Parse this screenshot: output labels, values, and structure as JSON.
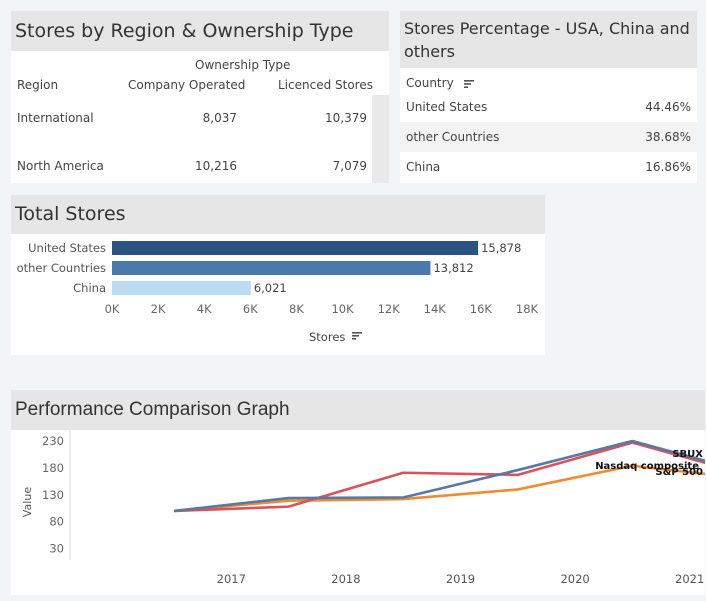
{
  "region_table": {
    "title": "Stores by Region & Ownership Type",
    "group_header": "Ownership Type",
    "col_region": "Region",
    "col_company": "Company Operated",
    "col_licenced": "Licenced Stores",
    "rows": [
      {
        "region": "International",
        "company": "8,037",
        "licenced": "10,379"
      },
      {
        "region": "North America",
        "company": "10,216",
        "licenced": "7,079"
      }
    ]
  },
  "percentage_table": {
    "title": "Stores Percentage - USA, China and others",
    "col_country": "Country",
    "rows": [
      {
        "country": "United States",
        "pct": "44.46%"
      },
      {
        "country": "other Countries",
        "pct": "38.68%"
      },
      {
        "country": "China",
        "pct": "16.86%"
      }
    ]
  },
  "total_stores": {
    "title": "Total Stores",
    "axis_label": "Stores",
    "ticks": [
      "0K",
      "2K",
      "4K",
      "6K",
      "8K",
      "10K",
      "12K",
      "14K",
      "16K",
      "18K"
    ],
    "colors": {
      "United States": "#2c5282",
      "other Countries": "#4a79ac",
      "China": "#bcdcf1"
    }
  },
  "performance": {
    "title": "Performance Comparison Graph",
    "ylabel": "Value",
    "yticks": [
      "230",
      "180",
      "130",
      "80",
      "30"
    ],
    "xticks": [
      "2017",
      "2018",
      "2019",
      "2020",
      "2021"
    ],
    "colors": {
      "SBUX": "#d9545a",
      "Nasdaq composite": "#5878a6",
      "S&P 500": "#f08c2e"
    }
  },
  "chart_data": [
    {
      "type": "bar",
      "orientation": "horizontal",
      "title": "Total Stores",
      "categories": [
        "United States",
        "other Countries",
        "China"
      ],
      "values": [
        15878,
        13812,
        6021
      ],
      "value_labels": [
        "15,878",
        "13,812",
        "6,021"
      ],
      "xlabel": "Stores",
      "xlim": [
        0,
        18000
      ]
    },
    {
      "type": "line",
      "title": "Performance Comparison Graph",
      "ylabel": "Value",
      "ylim": [
        30,
        230
      ],
      "x": [
        2016.5,
        2017.5,
        2018.5,
        2019.5,
        2020.5,
        2021.5
      ],
      "series": [
        {
          "name": "SBUX",
          "values": [
            100,
            108,
            171,
            167,
            227,
            168
          ]
        },
        {
          "name": "Nasdaq composite",
          "values": [
            100,
            124,
            125,
            176,
            230,
            172
          ]
        },
        {
          "name": "S&P 500",
          "values": [
            100,
            119,
            122,
            140,
            184,
            160
          ]
        }
      ]
    }
  ]
}
